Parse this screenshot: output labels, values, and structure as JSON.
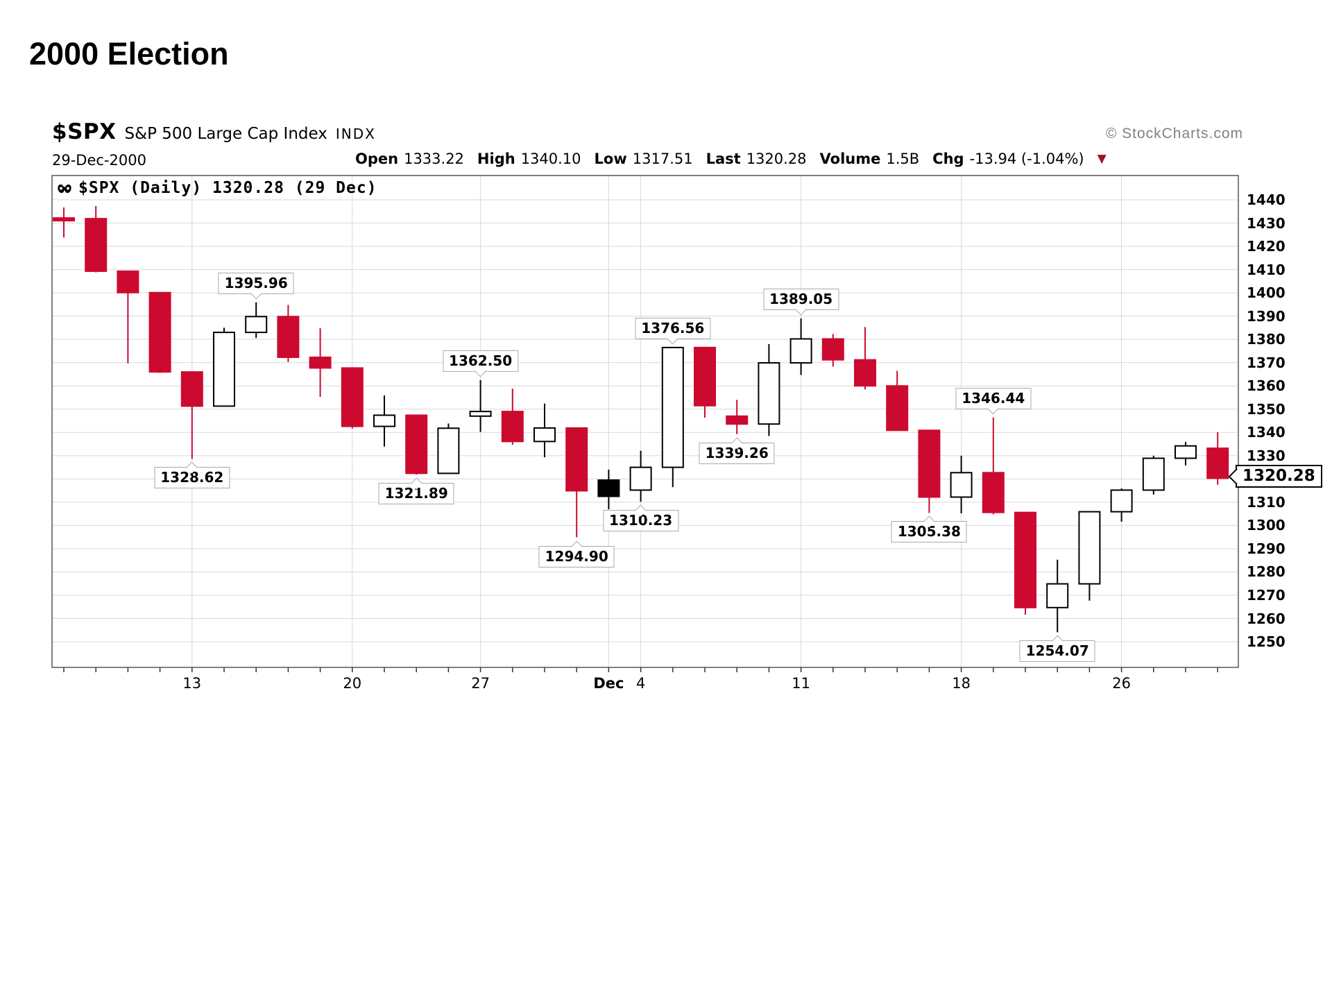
{
  "slide_title": "2000 Election",
  "header": {
    "symbol": "$SPX",
    "index_name": "S&P 500 Large Cap Index",
    "exchange": "INDX",
    "date": "29-Dec-2000",
    "quote_fields": [
      {
        "label": "Open",
        "value": "1333.22"
      },
      {
        "label": "High",
        "value": "1340.10"
      },
      {
        "label": "Low",
        "value": "1317.51"
      },
      {
        "label": "Last",
        "value": "1320.28"
      },
      {
        "label": "Volume",
        "value": "1.5B"
      },
      {
        "label": "Chg",
        "value": "-13.94 (-1.04%)"
      }
    ],
    "chg_arrow_icon": "▼",
    "credit": "© StockCharts.com"
  },
  "legend": {
    "icon": "sharpchart-paw-icon",
    "text": "$SPX (Daily) 1320.28 (29 Dec)"
  },
  "chart_data": {
    "type": "candlestick",
    "title": "$SPX S&P 500 Large Cap Index, Daily, Nov 7 - Dec 29 2000",
    "grid": true,
    "y_axis": {
      "min": 1250,
      "max": 1440,
      "step": 10,
      "tick_labels": [
        1440,
        1430,
        1420,
        1410,
        1400,
        1390,
        1380,
        1370,
        1360,
        1350,
        1340,
        1330,
        1310,
        1300,
        1290,
        1280,
        1270,
        1260,
        1250
      ],
      "label_replaced_by_last_price": 1320
    },
    "x_axis": {
      "labels": [
        {
          "text": "13",
          "candle_index": 4,
          "bold": false
        },
        {
          "text": "20",
          "candle_index": 9,
          "bold": false
        },
        {
          "text": "27",
          "candle_index": 13,
          "bold": false
        },
        {
          "text": "Dec",
          "candle_index": 17,
          "bold": true
        },
        {
          "text": "4",
          "candle_index": 18,
          "bold": false
        },
        {
          "text": "11",
          "candle_index": 23,
          "bold": false
        },
        {
          "text": "18",
          "candle_index": 28,
          "bold": false
        },
        {
          "text": "26",
          "candle_index": 33,
          "bold": false
        }
      ]
    },
    "candles": [
      {
        "date": "Nov 7",
        "open": 1432.2,
        "high": 1436.7,
        "low": 1423.8,
        "close": 1431.9,
        "type": "down"
      },
      {
        "date": "Nov 8",
        "open": 1431.9,
        "high": 1437.3,
        "low": 1408.8,
        "close": 1409.3,
        "type": "down"
      },
      {
        "date": "Nov 9",
        "open": 1409.3,
        "high": 1409.3,
        "low": 1369.7,
        "close": 1400.1,
        "type": "down"
      },
      {
        "date": "Nov 10",
        "open": 1400.1,
        "high": 1400.1,
        "low": 1365.6,
        "close": 1366.0,
        "type": "down"
      },
      {
        "date": "Nov 13",
        "open": 1366.0,
        "high": 1366.0,
        "low": 1328.62,
        "close": 1351.3,
        "type": "down"
      },
      {
        "date": "Nov 14",
        "open": 1351.3,
        "high": 1385.0,
        "low": 1351.3,
        "close": 1383.0,
        "type": "up"
      },
      {
        "date": "Nov 15",
        "open": 1383.0,
        "high": 1395.96,
        "low": 1380.6,
        "close": 1389.8,
        "type": "up"
      },
      {
        "date": "Nov 16",
        "open": 1389.8,
        "high": 1394.8,
        "low": 1370.3,
        "close": 1372.3,
        "type": "down"
      },
      {
        "date": "Nov 17",
        "open": 1372.3,
        "high": 1384.8,
        "low": 1355.3,
        "close": 1367.7,
        "type": "down"
      },
      {
        "date": "Nov 20",
        "open": 1367.7,
        "high": 1367.7,
        "low": 1341.7,
        "close": 1342.6,
        "type": "down"
      },
      {
        "date": "Nov 21",
        "open": 1342.6,
        "high": 1355.9,
        "low": 1333.9,
        "close": 1347.4,
        "type": "up"
      },
      {
        "date": "Nov 22",
        "open": 1347.4,
        "high": 1347.4,
        "low": 1321.89,
        "close": 1322.4,
        "type": "down"
      },
      {
        "date": "Nov 24",
        "open": 1322.4,
        "high": 1343.8,
        "low": 1322.4,
        "close": 1341.8,
        "type": "up"
      },
      {
        "date": "Nov 27",
        "open": 1347.0,
        "high": 1362.5,
        "low": 1340.2,
        "close": 1349.0,
        "type": "up"
      },
      {
        "date": "Nov 28",
        "open": 1349.0,
        "high": 1358.8,
        "low": 1334.7,
        "close": 1336.1,
        "type": "down"
      },
      {
        "date": "Nov 29",
        "open": 1336.1,
        "high": 1352.4,
        "low": 1329.3,
        "close": 1341.9,
        "type": "up"
      },
      {
        "date": "Nov 30",
        "open": 1341.9,
        "high": 1341.9,
        "low": 1294.9,
        "close": 1314.9,
        "type": "down"
      },
      {
        "date": "Dec 1",
        "open": 1319.5,
        "high": 1324.0,
        "low": 1307.0,
        "close": 1312.5,
        "type": "filled"
      },
      {
        "date": "Dec 4",
        "open": 1315.2,
        "high": 1332.1,
        "low": 1310.23,
        "close": 1325.0,
        "type": "up"
      },
      {
        "date": "Dec 5",
        "open": 1325.0,
        "high": 1376.56,
        "low": 1316.5,
        "close": 1376.5,
        "type": "up"
      },
      {
        "date": "Dec 6",
        "open": 1376.5,
        "high": 1376.5,
        "low": 1346.3,
        "close": 1351.5,
        "type": "down"
      },
      {
        "date": "Dec 7",
        "open": 1347.0,
        "high": 1354.0,
        "low": 1339.26,
        "close": 1343.6,
        "type": "down"
      },
      {
        "date": "Dec 8",
        "open": 1343.6,
        "high": 1378.0,
        "low": 1338.5,
        "close": 1369.9,
        "type": "up"
      },
      {
        "date": "Dec 11",
        "open": 1369.9,
        "high": 1389.05,
        "low": 1364.7,
        "close": 1380.2,
        "type": "up"
      },
      {
        "date": "Dec 12",
        "open": 1380.2,
        "high": 1382.3,
        "low": 1368.3,
        "close": 1371.2,
        "type": "down"
      },
      {
        "date": "Dec 13",
        "open": 1371.2,
        "high": 1385.3,
        "low": 1358.5,
        "close": 1360.0,
        "type": "down"
      },
      {
        "date": "Dec 14",
        "open": 1360.0,
        "high": 1366.5,
        "low": 1340.9,
        "close": 1340.9,
        "type": "down"
      },
      {
        "date": "Dec 15",
        "open": 1340.9,
        "high": 1340.9,
        "low": 1305.38,
        "close": 1312.2,
        "type": "down"
      },
      {
        "date": "Dec 18",
        "open": 1312.2,
        "high": 1330.0,
        "low": 1305.2,
        "close": 1322.7,
        "type": "up"
      },
      {
        "date": "Dec 19",
        "open": 1322.7,
        "high": 1346.44,
        "low": 1304.8,
        "close": 1305.6,
        "type": "down"
      },
      {
        "date": "Dec 20",
        "open": 1305.6,
        "high": 1305.6,
        "low": 1261.6,
        "close": 1264.7,
        "type": "down"
      },
      {
        "date": "Dec 21",
        "open": 1264.7,
        "high": 1285.3,
        "low": 1254.07,
        "close": 1274.9,
        "type": "up"
      },
      {
        "date": "Dec 22",
        "open": 1274.9,
        "high": 1306.0,
        "low": 1267.7,
        "close": 1305.9,
        "type": "up"
      },
      {
        "date": "Dec 26",
        "open": 1305.9,
        "high": 1315.9,
        "low": 1301.6,
        "close": 1315.2,
        "type": "up"
      },
      {
        "date": "Dec 27",
        "open": 1315.2,
        "high": 1330.0,
        "low": 1313.3,
        "close": 1328.9,
        "type": "up"
      },
      {
        "date": "Dec 28",
        "open": 1328.9,
        "high": 1335.9,
        "low": 1325.8,
        "close": 1334.2,
        "type": "up"
      },
      {
        "date": "Dec 29",
        "open": 1333.2,
        "high": 1340.1,
        "low": 1317.5,
        "close": 1320.28,
        "type": "down"
      }
    ],
    "annotations": [
      {
        "text": "1395.96",
        "candle_index": 6,
        "side": "above",
        "price": 1395.96
      },
      {
        "text": "1328.62",
        "candle_index": 4,
        "side": "below",
        "price": 1328.62
      },
      {
        "text": "1362.50",
        "candle_index": 13,
        "side": "above",
        "price": 1362.5
      },
      {
        "text": "1321.89",
        "candle_index": 11,
        "side": "below",
        "price": 1321.89
      },
      {
        "text": "1376.56",
        "candle_index": 19,
        "side": "above",
        "price": 1376.56
      },
      {
        "text": "1310.23",
        "candle_index": 18,
        "side": "below",
        "price": 1310.23
      },
      {
        "text": "1294.90",
        "candle_index": 16,
        "side": "below",
        "price": 1294.9
      },
      {
        "text": "1339.26",
        "candle_index": 21,
        "side": "below",
        "price": 1339.26
      },
      {
        "text": "1389.05",
        "candle_index": 23,
        "side": "above",
        "price": 1389.05
      },
      {
        "text": "1305.38",
        "candle_index": 27,
        "side": "below",
        "price": 1305.38
      },
      {
        "text": "1346.44",
        "candle_index": 29,
        "side": "above",
        "price": 1346.44
      },
      {
        "text": "1254.07",
        "candle_index": 31,
        "side": "below",
        "price": 1254.07
      }
    ],
    "last_price": {
      "text": "1320.28",
      "value": 1320.28
    },
    "colors": {
      "down": "#cc0a30",
      "up_fill": "#ffffff",
      "up_stroke": "#000000",
      "filled_fill": "#000000",
      "grid": "#d9d9d9",
      "frame": "#555555",
      "tick": "#333333",
      "credit_gray": "#808080",
      "chg_arrow": "#9b1224"
    }
  }
}
